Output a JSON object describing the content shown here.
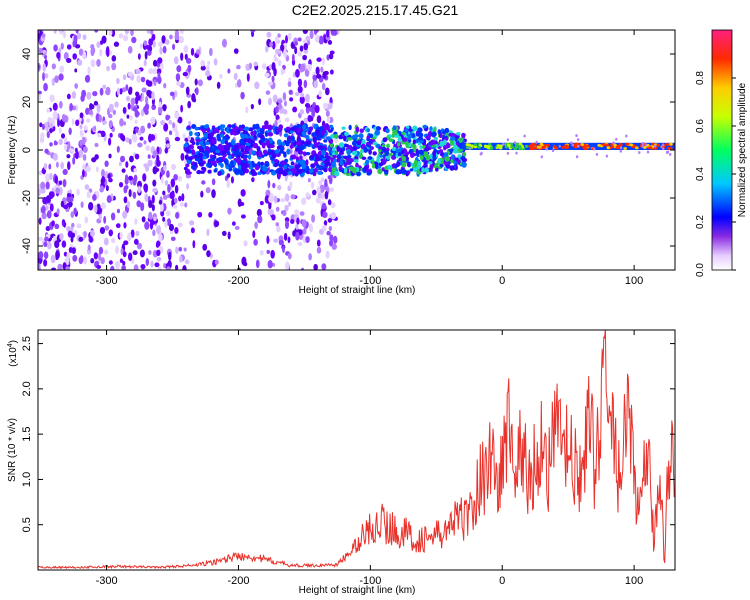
{
  "page": {
    "title": "C2E2.2025.215.17.45.G21"
  },
  "colors": {
    "signal_line": "#e8322b",
    "accent_purple": "#6a00ff",
    "accent_cyan": "#22d8d8",
    "accent_green": "#28c850",
    "accent_red": "#e02828"
  },
  "chart_data": [
    {
      "type": "heatmap",
      "title": "C2E2.2025.215.17.45.G21",
      "xlabel": "Height of straight line (km)",
      "ylabel": "Frequency (Hz)",
      "xlim": [
        -352,
        131
      ],
      "ylim": [
        -50,
        50
      ],
      "x_ticks": [
        -300,
        -200,
        -100,
        0,
        100
      ],
      "y_ticks": [
        -40,
        -20,
        0,
        20,
        40
      ],
      "colorbar": {
        "label": "Normalized spectral amplitude",
        "range": [
          0.0,
          1.0
        ],
        "ticks": [
          0.0,
          0.2,
          0.4,
          0.6,
          0.8
        ]
      },
      "features": [
        {
          "x_range": [
            -352,
            -237
          ],
          "y_range": [
            -50,
            50
          ],
          "amplitude": 0.15
        },
        {
          "x_range": [
            -237,
            -125
          ],
          "y_range": [
            -10,
            10
          ],
          "amplitude": 0.25
        },
        {
          "x_range": [
            -125,
            -30
          ],
          "y_range": [
            -10,
            10
          ],
          "amplitude": 0.35
        },
        {
          "x_range": [
            -30,
            131
          ],
          "y_range": [
            0,
            3
          ],
          "amplitude": 0.8
        }
      ]
    },
    {
      "type": "line",
      "xlabel": "Height of straight line (km)",
      "ylabel": "SNR (10 * v/v)",
      "y_multiplier_label": "(x10",
      "y_multiplier_exp": "4",
      "y_multiplier_close": ")",
      "xlim": [
        -352,
        131
      ],
      "ylim": [
        0,
        2.65
      ],
      "x_ticks": [
        -300,
        -200,
        -100,
        0,
        100
      ],
      "y_ticks": [
        0.5,
        1.0,
        1.5,
        2.0,
        2.5
      ],
      "y_tick_labels": [
        "0.5",
        "1.0",
        "1.5",
        "2.0",
        "2.5"
      ],
      "series": [
        {
          "x": [
            -352,
            -320,
            -290,
            -260,
            -235,
            -220,
            -205,
            -195,
            -185,
            -175,
            -160,
            -140,
            -125,
            -115,
            -105,
            -95,
            -85,
            -75,
            -65,
            -55,
            -45,
            -35,
            -25,
            -15,
            -8,
            -4,
            0,
            5,
            10,
            15,
            20,
            25,
            30,
            35,
            40,
            45,
            50,
            55,
            60,
            65,
            70,
            75,
            78,
            81,
            85,
            90,
            95,
            100,
            105,
            110,
            115,
            120,
            123,
            126,
            131
          ],
          "values": [
            0.03,
            0.03,
            0.04,
            0.03,
            0.05,
            0.08,
            0.14,
            0.16,
            0.13,
            0.1,
            0.05,
            0.05,
            0.06,
            0.2,
            0.38,
            0.55,
            0.46,
            0.42,
            0.33,
            0.36,
            0.4,
            0.55,
            0.6,
            1.05,
            1.3,
            0.9,
            1.15,
            1.65,
            1.05,
            1.4,
            0.95,
            1.2,
            1.45,
            1.1,
            1.55,
            1.45,
            1.3,
            1.1,
            0.95,
            1.7,
            1.2,
            1.65,
            2.63,
            1.6,
            1.45,
            0.9,
            1.85,
            1.05,
            0.6,
            1.35,
            0.3,
            1.2,
            0.02,
            1.3,
            1.25
          ]
        }
      ]
    }
  ]
}
